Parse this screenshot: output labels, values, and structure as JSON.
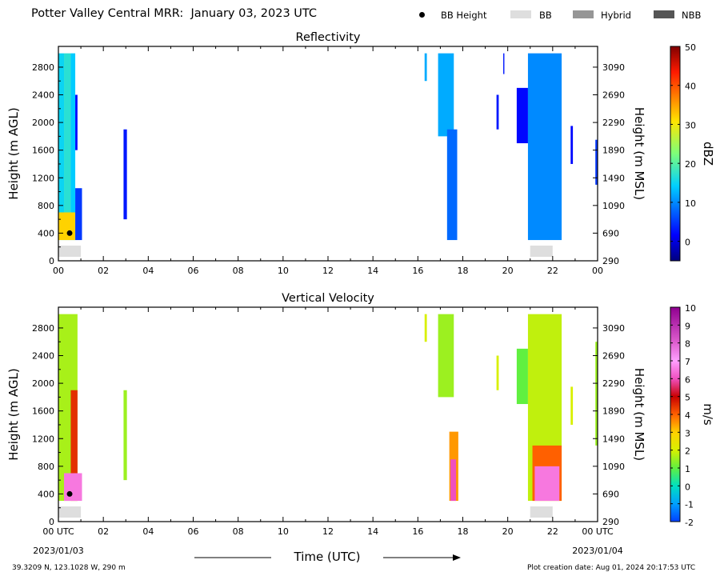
{
  "header": {
    "title": "Potter Valley Central MRR:  January 03, 2023 UTC",
    "legend": [
      {
        "label": "BB Height",
        "kind": "dot",
        "color": "#000000"
      },
      {
        "label": "BB",
        "kind": "swatch",
        "color": "#dedede"
      },
      {
        "label": "Hybrid",
        "kind": "swatch",
        "color": "#969696"
      },
      {
        "label": "NBB",
        "kind": "swatch",
        "color": "#555555"
      }
    ]
  },
  "footer": {
    "location": "39.3209 N, 123.1028 W, 290 m",
    "created": "Plot creation date: Aug 01, 2024 20:17:53 UTC"
  },
  "shared_axes": {
    "x_ticks": [
      "00",
      "02",
      "04",
      "06",
      "08",
      "10",
      "12",
      "14",
      "16",
      "18",
      "20",
      "22",
      "00"
    ],
    "x_tick_first": "00 UTC",
    "x_tick_last": "00 UTC",
    "date_start": "2023/01/03",
    "date_end": "2023/01/04",
    "xlabel": "Time (UTC)",
    "ylabel_left": "Height (m AGL)",
    "ylabel_right": "Height (m MSL)",
    "y_ticks_left": [
      "0",
      "400",
      "800",
      "1200",
      "1600",
      "2000",
      "2400",
      "2800"
    ],
    "y_ticks_right": [
      "290",
      "690",
      "1090",
      "1490",
      "1890",
      "2290",
      "2690",
      "3090"
    ]
  },
  "chart_data": [
    {
      "type": "heatmap",
      "title": "Reflectivity",
      "xlim": [
        0,
        24
      ],
      "ylim": [
        0,
        3100
      ],
      "colorbar": {
        "label": "dBZ",
        "min": -5,
        "max": 50,
        "ticks": [
          "0",
          "10",
          "20",
          "30",
          "40",
          "50"
        ],
        "colormap": "jet"
      },
      "cells": [
        {
          "t0": 0.0,
          "t1": 0.25,
          "h0": 300,
          "h1": 3000,
          "value": 15
        },
        {
          "t0": 0.25,
          "t1": 0.55,
          "h0": 300,
          "h1": 3000,
          "value": 17
        },
        {
          "t0": 0.55,
          "t1": 0.75,
          "h0": 300,
          "h1": 3000,
          "value": 14
        },
        {
          "t0": 0.0,
          "t1": 0.75,
          "h0": 300,
          "h1": 700,
          "value": 32
        },
        {
          "t0": 0.75,
          "t1": 1.05,
          "h0": 300,
          "h1": 1050,
          "value": 5
        },
        {
          "t0": 0.75,
          "t1": 0.85,
          "h0": 1600,
          "h1": 2400,
          "value": 2
        },
        {
          "t0": 2.9,
          "t1": 3.05,
          "h0": 600,
          "h1": 1900,
          "value": 3
        },
        {
          "t0": 16.3,
          "t1": 16.4,
          "h0": 2600,
          "h1": 3000,
          "value": 12
        },
        {
          "t0": 16.9,
          "t1": 17.6,
          "h0": 1800,
          "h1": 3000,
          "value": 12
        },
        {
          "t0": 17.3,
          "t1": 17.75,
          "h0": 300,
          "h1": 1900,
          "value": 8
        },
        {
          "t0": 19.5,
          "t1": 19.6,
          "h0": 1900,
          "h1": 2400,
          "value": 3
        },
        {
          "t0": 19.8,
          "t1": 19.85,
          "h0": 2700,
          "h1": 3000,
          "value": 3
        },
        {
          "t0": 20.4,
          "t1": 20.9,
          "h0": 1700,
          "h1": 2500,
          "value": 2
        },
        {
          "t0": 20.9,
          "t1": 22.4,
          "h0": 300,
          "h1": 3000,
          "value": 10
        },
        {
          "t0": 22.8,
          "t1": 22.9,
          "h0": 1400,
          "h1": 1950,
          "value": 2
        },
        {
          "t0": 23.9,
          "t1": 24.0,
          "h0": 1100,
          "h1": 1750,
          "value": 5
        }
      ],
      "bb_height": [
        {
          "t": 0.5,
          "h": 400
        }
      ],
      "bb_type": [
        {
          "t0": 0.0,
          "t1": 1.0,
          "type": "BB"
        },
        {
          "t0": 21.0,
          "t1": 22.0,
          "type": "BB"
        }
      ]
    },
    {
      "type": "heatmap",
      "title": "Vertical Velocity",
      "xlim": [
        0,
        24
      ],
      "ylim": [
        0,
        3100
      ],
      "colorbar": {
        "label": "m/s",
        "min": -2,
        "max": 10,
        "ticks": [
          "-2",
          "-1",
          "0",
          "1",
          "2",
          "3",
          "4",
          "5",
          "6",
          "7",
          "8",
          "9",
          "10"
        ],
        "colormap": "velocity"
      },
      "cells": [
        {
          "t0": 0.0,
          "t1": 0.85,
          "h0": 300,
          "h1": 3000,
          "value": 1.6
        },
        {
          "t0": 0.55,
          "t1": 0.85,
          "h0": 300,
          "h1": 1900,
          "value": 4.5
        },
        {
          "t0": 0.25,
          "t1": 1.05,
          "h0": 300,
          "h1": 700,
          "value": 6.5
        },
        {
          "t0": 2.9,
          "t1": 3.05,
          "h0": 600,
          "h1": 1900,
          "value": 1.5
        },
        {
          "t0": 16.3,
          "t1": 16.4,
          "h0": 2600,
          "h1": 3000,
          "value": 2
        },
        {
          "t0": 16.9,
          "t1": 17.6,
          "h0": 1800,
          "h1": 3000,
          "value": 1.5
        },
        {
          "t0": 17.4,
          "t1": 17.8,
          "h0": 300,
          "h1": 1300,
          "value": 3.5
        },
        {
          "t0": 17.45,
          "t1": 17.7,
          "h0": 300,
          "h1": 900,
          "value": 6
        },
        {
          "t0": 19.5,
          "t1": 19.6,
          "h0": 1900,
          "h1": 2400,
          "value": 2
        },
        {
          "t0": 20.4,
          "t1": 20.9,
          "h0": 1700,
          "h1": 2500,
          "value": 1
        },
        {
          "t0": 20.9,
          "t1": 22.4,
          "h0": 300,
          "h1": 3000,
          "value": 1.8
        },
        {
          "t0": 21.1,
          "t1": 22.4,
          "h0": 300,
          "h1": 1100,
          "value": 4
        },
        {
          "t0": 21.2,
          "t1": 22.3,
          "h0": 300,
          "h1": 800,
          "value": 6.5
        },
        {
          "t0": 22.8,
          "t1": 22.9,
          "h0": 1400,
          "h1": 1950,
          "value": 2
        },
        {
          "t0": 23.9,
          "t1": 24.0,
          "h0": 1100,
          "h1": 2600,
          "value": 1.5
        }
      ],
      "bb_height": [
        {
          "t": 0.5,
          "h": 400
        }
      ],
      "bb_type": [
        {
          "t0": 0.0,
          "t1": 1.0,
          "type": "BB"
        },
        {
          "t0": 21.0,
          "t1": 22.0,
          "type": "BB"
        }
      ]
    }
  ]
}
